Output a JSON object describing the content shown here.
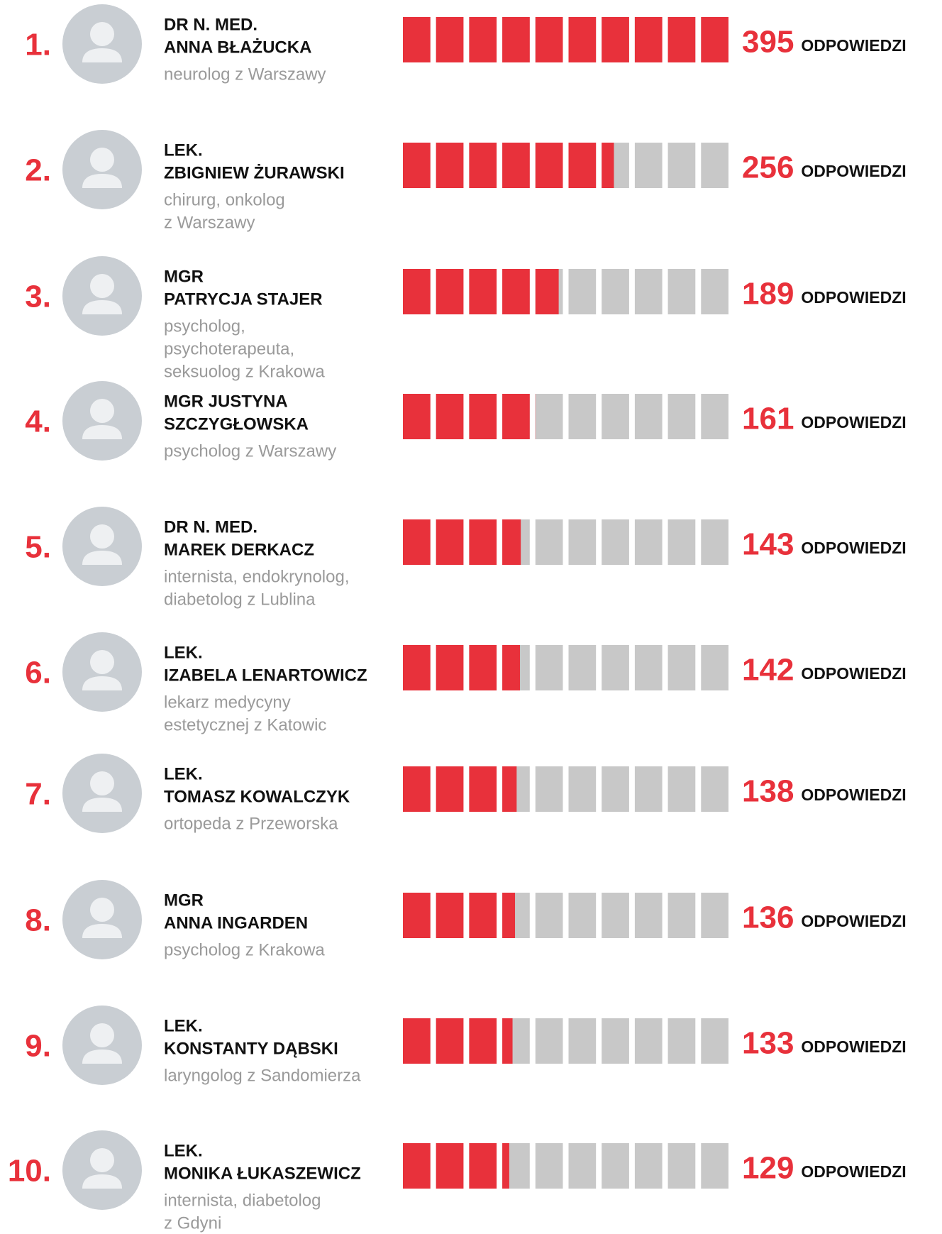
{
  "chart_data": {
    "type": "bar",
    "rows": [
      {
        "rank": "1.",
        "name": [
          "DR N. MED.",
          "ANNA BŁAŻUCKA"
        ],
        "description": [
          "neurolog z Warszawy"
        ]
      },
      {
        "rank": "2.",
        "name": [
          "LEK.",
          "ZBIGNIEW ŻURAWSKI"
        ],
        "description": [
          "chirurg, onkolog",
          "z Warszawy"
        ]
      },
      {
        "rank": "3.",
        "name": [
          "MGR",
          "PATRYCJA STAJER"
        ],
        "description": [
          "psycholog,",
          "psychoterapeuta,",
          "seksuolog z Krakowa"
        ]
      },
      {
        "rank": "4.",
        "name": [
          "MGR JUSTYNA",
          "SZCZYGŁOWSKA"
        ],
        "description": [
          "psycholog z Warszawy"
        ]
      },
      {
        "rank": "5.",
        "name": [
          "DR N. MED.",
          "MAREK DERKACZ"
        ],
        "description": [
          "internista, endokrynolog,",
          "diabetolog z Lublina"
        ]
      },
      {
        "rank": "6.",
        "name": [
          "LEK.",
          "IZABELA LENARTOWICZ"
        ],
        "description": [
          "lekarz medycyny",
          "estetycznej z Katowic"
        ]
      },
      {
        "rank": "7.",
        "name": [
          "LEK.",
          "TOMASZ KOWALCZYK"
        ],
        "description": [
          "ortopeda z Przeworska"
        ]
      },
      {
        "rank": "8.",
        "name": [
          "MGR",
          "ANNA INGARDEN"
        ],
        "description": [
          "psycholog z Krakowa"
        ]
      },
      {
        "rank": "9.",
        "name": [
          "LEK.",
          "KONSTANTY DĄBSKI"
        ],
        "description": [
          "laryngolog z Sandomierza"
        ]
      },
      {
        "rank": "10.",
        "name": [
          "LEK.",
          "MONIKA ŁUKASZEWICZ"
        ],
        "description": [
          "internista, diabetolog",
          "z Gdyni"
        ]
      }
    ],
    "values": [
      395,
      256,
      189,
      161,
      143,
      142,
      138,
      136,
      133,
      129
    ],
    "unit": "ODPOWIEDZI",
    "xlim": [
      0,
      395
    ],
    "color": "#e8313b",
    "track_color": "#c8c8c8"
  }
}
